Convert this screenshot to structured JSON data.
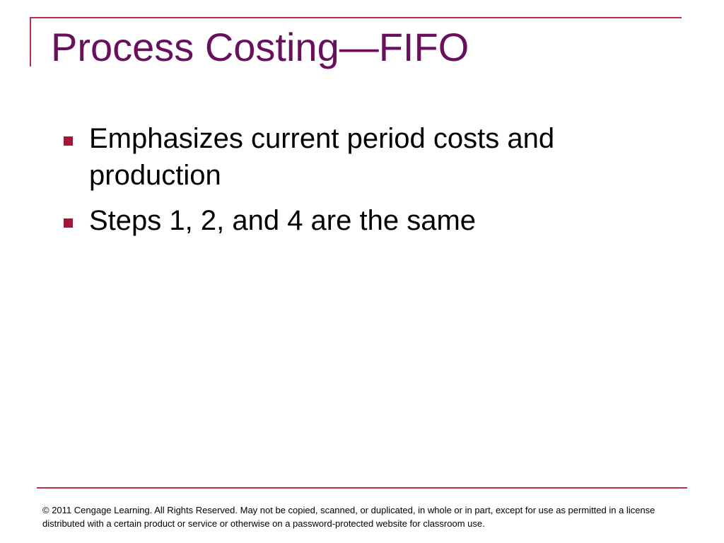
{
  "title": "Process Costing—FIFO",
  "bullets": [
    "Emphasizes current period costs and production",
    "Steps 1, 2, and 4 are the same"
  ],
  "footer": "© 2011 Cengage Learning.  All Rights Reserved.  May not be copied, scanned, or duplicated, in whole or in part, except for use as permitted in a license distributed with a certain product or service or otherwise on a password-protected website for classroom use."
}
